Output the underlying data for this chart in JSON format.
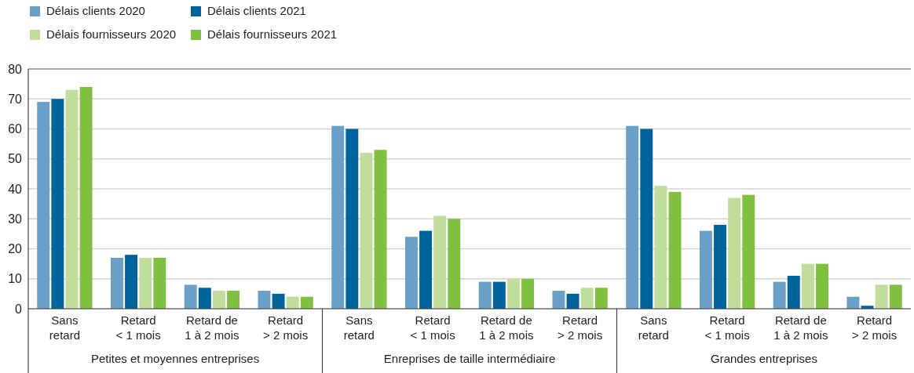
{
  "chart_data": {
    "type": "bar",
    "categories": [
      "Sans\nretard",
      "Retard\n< 1 mois",
      "Retard de\n1 à 2 mois",
      "Retard\n> 2 mois",
      "Sans\nretard",
      "Retard\n< 1 mois",
      "Retard de\n1 à 2 mois",
      "Retard\n> 2 mois",
      "Sans\nretard",
      "Retard\n< 1 mois",
      "Retard de\n1 à 2 mois",
      "Retard\n> 2 mois"
    ],
    "series": [
      {
        "name": "Délais clients 2020",
        "color": "#6aa0c8",
        "values": [
          69,
          17,
          8,
          6,
          61,
          24,
          9,
          6,
          61,
          26,
          9,
          4
        ]
      },
      {
        "name": "Délais clients 2021",
        "color": "#00649c",
        "values": [
          70,
          18,
          7,
          5,
          60,
          26,
          9,
          5,
          60,
          28,
          11,
          1
        ]
      },
      {
        "name": "Délais fournisseurs 2020",
        "color": "#c0dd9c",
        "values": [
          73,
          17,
          6,
          4,
          52,
          31,
          10,
          7,
          41,
          37,
          15,
          8
        ]
      },
      {
        "name": "Délais fournisseurs 2021",
        "color": "#80c040",
        "values": [
          74,
          17,
          6,
          4,
          53,
          30,
          10,
          7,
          39,
          38,
          15,
          8
        ]
      }
    ],
    "annotations": [
      "Petites et moyennes entreprises",
      "Enreprises de taille intermédiaire",
      "Grandes entreprises"
    ],
    "ylim": [
      0,
      80
    ],
    "yticks": [
      0,
      10,
      20,
      30,
      40,
      50,
      60,
      70,
      80
    ],
    "grid": "y",
    "legend": "top left"
  }
}
